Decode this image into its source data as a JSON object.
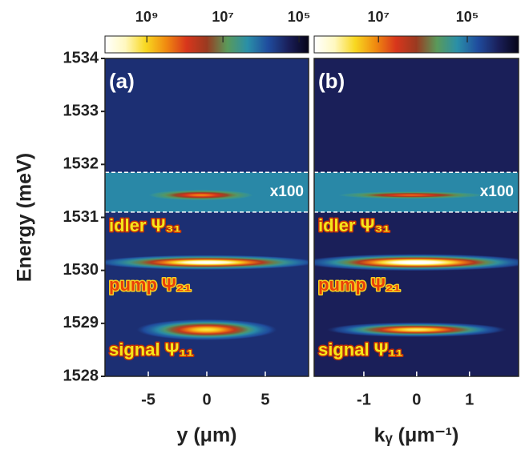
{
  "chart_data": [
    {
      "type": "heatmap",
      "panel_label": "(a)",
      "xlabel": "y (μm)",
      "ylabel": "Energy (meV)",
      "xlim": [
        -8.7,
        8.7
      ],
      "xticks": [
        {
          "value": -5,
          "label": "-5"
        },
        0,
        5
      ],
      "ylim": [
        1528,
        1534
      ],
      "yticks": [
        1528,
        1529,
        1530,
        1531,
        1532,
        1533,
        1534
      ],
      "color_scale": "log",
      "clim": [
        12600000000,
        56000
      ],
      "cticks": [
        {
          "value": 1000000000,
          "label": "10⁹"
        },
        {
          "value": 10000000,
          "label": "10⁷"
        },
        {
          "value": 100000,
          "label": "10⁵"
        }
      ],
      "colormap": [
        "#060418",
        "#1a1f5a",
        "#1f4c9e",
        "#2a8fa8",
        "#5a9a5a",
        "#9a3a20",
        "#d8361c",
        "#f08a10",
        "#f8d820",
        "#fff8c0",
        "#ffffff"
      ],
      "background": 300000,
      "scaled_region": {
        "ylim": [
          1531.1,
          1531.85
        ],
        "background": 2000000,
        "label": "x100"
      },
      "bands": [
        {
          "x": -0.5,
          "x_halfwidth": 4.5,
          "y": 1531.42,
          "y_halfwidth": 0.1,
          "peak": 300000000
        },
        {
          "x": 0,
          "x_halfwidth": 9.5,
          "y": 1530.15,
          "y_halfwidth": 0.14,
          "peak": 12000000000
        },
        {
          "x": 0,
          "x_halfwidth": 6,
          "y": 1528.88,
          "y_halfwidth": 0.2,
          "peak": 1500000000
        }
      ],
      "annotations": [
        "idler Ψ₃₁",
        "pump Ψ₂₁",
        "signal Ψ₁₁"
      ]
    },
    {
      "type": "heatmap",
      "panel_label": "(b)",
      "xlabel": "kᵧ (μm⁻¹)",
      "xlim": [
        -1.94,
        1.93
      ],
      "xticks": [
        {
          "value": -1,
          "label": "-1"
        },
        0,
        1
      ],
      "ylim": [
        1528,
        1534
      ],
      "color_scale": "log",
      "clim": [
        280000000,
        7000
      ],
      "cticks": [
        {
          "value": 10000000,
          "label": "10⁷"
        },
        {
          "value": 100000,
          "label": "10⁵"
        }
      ],
      "colormap": [
        "#060418",
        "#1a1f5a",
        "#1f4c9e",
        "#2a8fa8",
        "#5a9a5a",
        "#9a3a20",
        "#d8361c",
        "#f08a10",
        "#f8d820",
        "#fff8c0",
        "#ffffff"
      ],
      "background": 20000,
      "scaled_region": {
        "ylim": [
          1531.1,
          1531.85
        ],
        "background": 150000,
        "label": "x100"
      },
      "bands": [
        {
          "x": -0.1,
          "x_halfwidth": 1.4,
          "y": 1531.42,
          "y_halfwidth": 0.07,
          "peak": 8000000
        },
        {
          "x": 0,
          "x_halfwidth": 2.2,
          "y": 1530.15,
          "y_halfwidth": 0.16,
          "peak": 400000000
        },
        {
          "x": 0,
          "x_halfwidth": 1.7,
          "y": 1528.88,
          "y_halfwidth": 0.14,
          "peak": 60000000
        }
      ],
      "annotations": [
        "idler Ψ₃₁",
        "pump Ψ₂₁",
        "signal Ψ₁₁"
      ]
    }
  ]
}
